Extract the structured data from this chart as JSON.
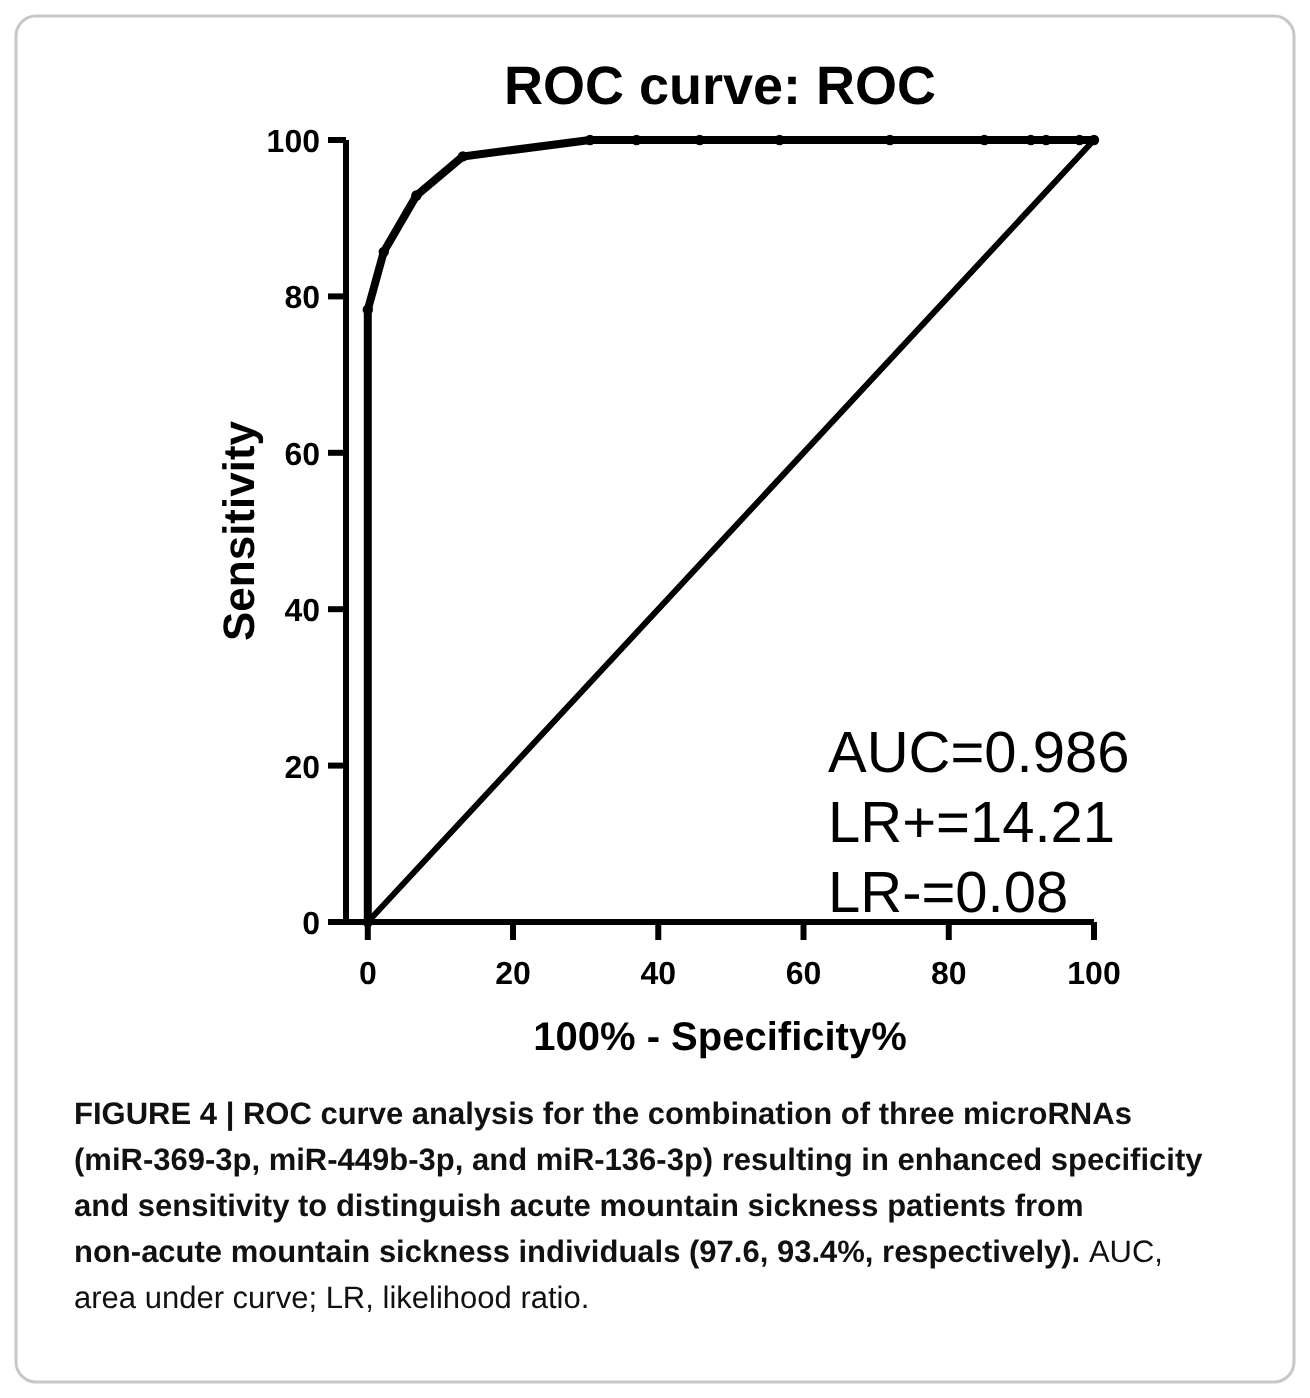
{
  "chart_data": {
    "type": "line",
    "title": "ROC curve: ROC",
    "xlabel": "100% - Specificity%",
    "ylabel": "Sensitivity",
    "xlim": [
      -3,
      100
    ],
    "ylim": [
      0,
      100
    ],
    "xticks": [
      0,
      20,
      40,
      60,
      80,
      100
    ],
    "yticks": [
      0,
      20,
      40,
      60,
      80,
      100
    ],
    "grid": false,
    "series": [
      {
        "color": "#000000",
        "marker": "circle",
        "x": [
          0,
          0,
          2.2,
          6.7,
          13.1,
          30.6,
          37,
          45.7,
          56.7,
          71.9,
          84.9,
          91.3,
          93.4,
          98,
          100
        ],
        "values": [
          0,
          78.3,
          85.7,
          92.9,
          97.9,
          100,
          100,
          100,
          100,
          100,
          100,
          100,
          100,
          100,
          100
        ]
      },
      {
        "color": "#000000",
        "marker": "none",
        "x": [
          0,
          100
        ],
        "values": [
          0,
          100
        ]
      }
    ],
    "annotations": [
      "AUC=0.986",
      "LR+=14.21",
      "LR-=0.08",
      "FIGURE 4 | ROC curve analysis for the combination of three microRNAs (miR-369-3p, miR-449b-3p, and miR-136-3p) resulting in enhanced specificity and sensitivity to distinguish acute mountain sickness patients from non-acute mountain sickness individuals (97.6, 93.4%, respectively).",
      "AUC, area under curve; LR, likelihood ratio."
    ]
  }
}
